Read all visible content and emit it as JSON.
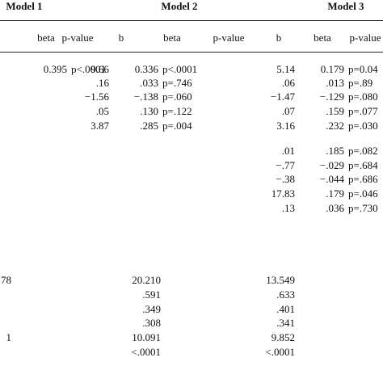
{
  "table": {
    "groups": [
      "Model 1",
      "Model 2",
      "Model 3"
    ],
    "headers": [
      "beta",
      "p-value",
      "b",
      "beta",
      "p-value",
      "b",
      "beta",
      "p-value"
    ],
    "rows": [
      [
        "0.395",
        "p<.0001",
        "9.66",
        "0.336",
        "p<.0001",
        "5.14",
        "0.179",
        "p=0.04"
      ],
      [
        null,
        null,
        ".16",
        ".033",
        "p=.746",
        ".06",
        ".013",
        "p=.89"
      ],
      [
        null,
        null,
        "−1.56",
        "−.138",
        "p=.060",
        "−1.47",
        "−.129",
        "p=.080"
      ],
      [
        null,
        null,
        ".05",
        ".130",
        "p=.122",
        ".07",
        ".159",
        "p=.077"
      ],
      [
        null,
        null,
        "3.87",
        ".285",
        "p=.004",
        "3.16",
        ".232",
        "p=.030"
      ],
      [
        null,
        null,
        null,
        null,
        null,
        ".01",
        ".185",
        "p=.082"
      ],
      [
        null,
        null,
        null,
        null,
        null,
        "−.77",
        "−.029",
        "p=.684"
      ],
      [
        null,
        null,
        null,
        null,
        null,
        "−.38",
        "−.044",
        "p=.686"
      ],
      [
        null,
        null,
        null,
        null,
        null,
        "17.83",
        ".179",
        "p=.046"
      ],
      [
        null,
        null,
        null,
        null,
        null,
        ".13",
        ".036",
        "p=.730"
      ]
    ],
    "stats": [
      [
        "78",
        "20.210",
        "13.549"
      ],
      [
        null,
        ".591",
        ".633"
      ],
      [
        null,
        ".349",
        ".401"
      ],
      [
        null,
        ".308",
        ".341"
      ],
      [
        "1",
        "10.091",
        "9.852"
      ],
      [
        null,
        "<.0001",
        "<.0001"
      ]
    ]
  }
}
